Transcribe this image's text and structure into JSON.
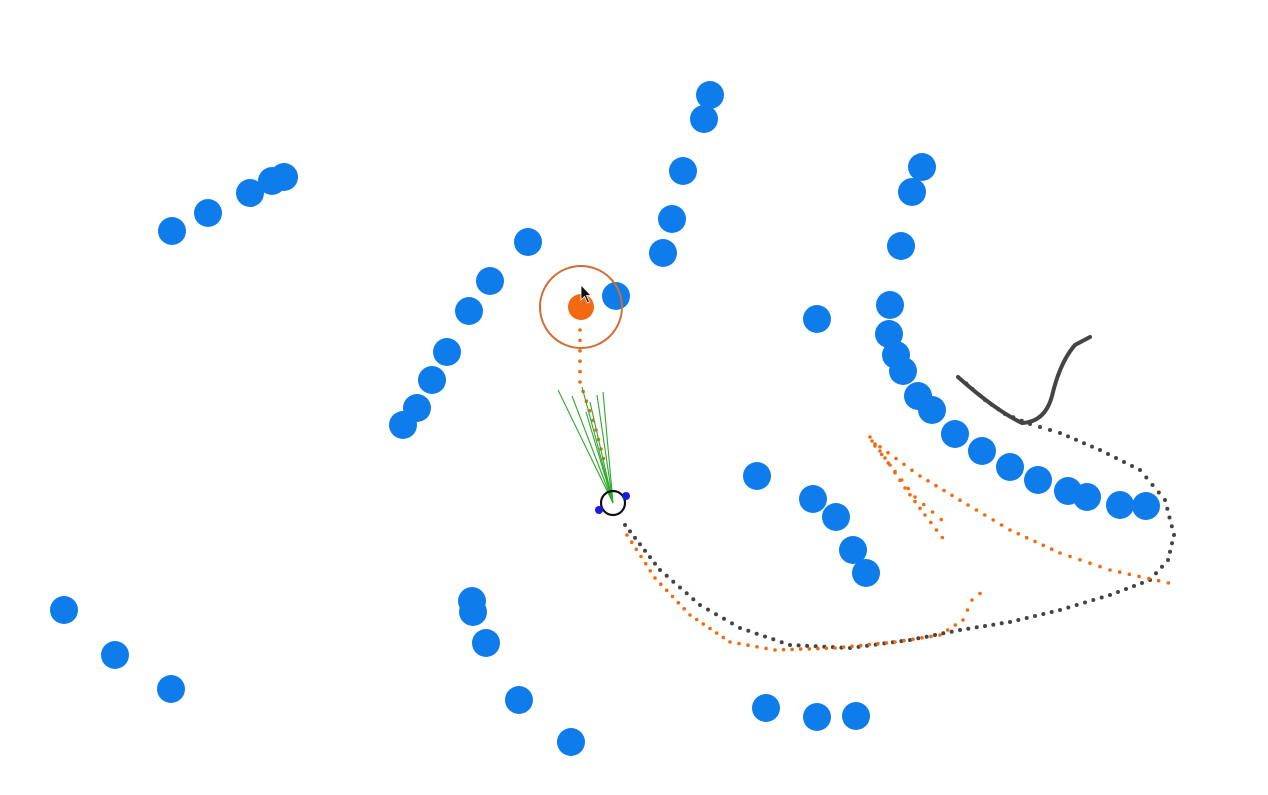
{
  "colors": {
    "background": "#ffffff",
    "obstacle": "#0f7cec",
    "goal": "#f26a10",
    "goal_ring": "#cf6e35",
    "planned_path": "#f26a10",
    "traveled_path": "#444444",
    "robot": "#111111",
    "robot_sensor": "#1a1ae0",
    "rays": "#2ea82e",
    "cursor": "#111111"
  },
  "icons": {
    "cursor": "mouse-pointer-icon",
    "robot": "robot-icon",
    "goal": "goal-target-icon"
  }
}
